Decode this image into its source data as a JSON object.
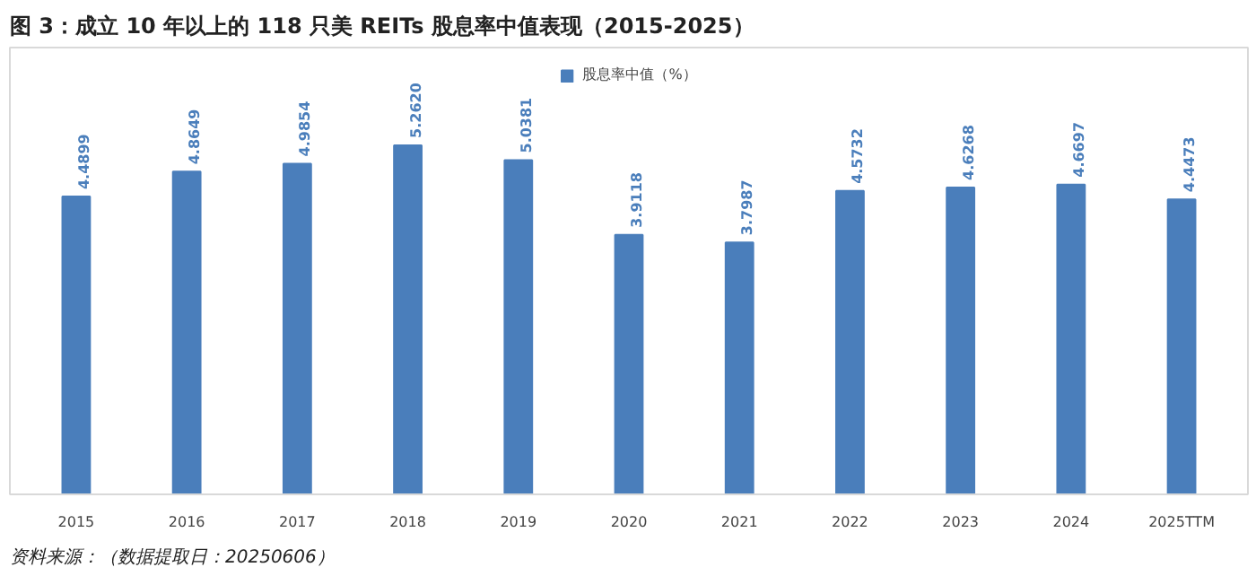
{
  "chart_data": {
    "type": "bar",
    "title": "图 3：成立 10 年以上的 118 只美 REITs 股息率中值表现（2015-2025）",
    "categories": [
      "2015",
      "2016",
      "2017",
      "2018",
      "2019",
      "2020",
      "2021",
      "2022",
      "2023",
      "2024",
      "2025TTM"
    ],
    "series": [
      {
        "name": "股息率中值（%）",
        "color": "#4a7ebb",
        "values": [
          4.4899,
          4.8649,
          4.9854,
          5.262,
          5.0381,
          3.9118,
          3.7987,
          4.5732,
          4.6268,
          4.6697,
          4.4473
        ],
        "value_labels": [
          "4.4899",
          "4.8649",
          "4.9854",
          "5.2620",
          "5.0381",
          "3.9118",
          "3.7987",
          "4.5732",
          "4.6268",
          "4.6697",
          "4.4473"
        ]
      }
    ],
    "annotations": [
      "资料来源：（数据提取日：20250606）"
    ],
    "legend": "top",
    "grid": false
  }
}
